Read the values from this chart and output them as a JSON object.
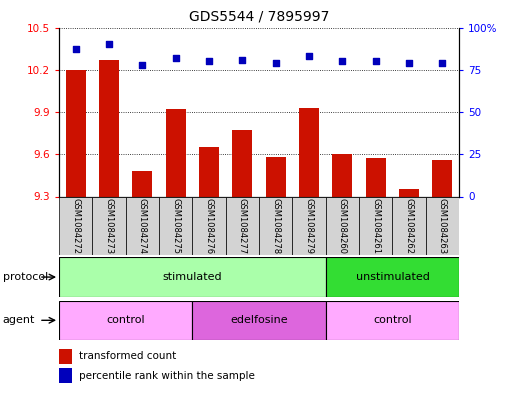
{
  "title": "GDS5544 / 7895997",
  "samples": [
    "GSM1084272",
    "GSM1084273",
    "GSM1084274",
    "GSM1084275",
    "GSM1084276",
    "GSM1084277",
    "GSM1084278",
    "GSM1084279",
    "GSM1084260",
    "GSM1084261",
    "GSM1084262",
    "GSM1084263"
  ],
  "transformed_count": [
    10.2,
    10.27,
    9.48,
    9.92,
    9.65,
    9.77,
    9.58,
    9.93,
    9.6,
    9.57,
    9.35,
    9.56
  ],
  "percentile_rank": [
    87,
    90,
    78,
    82,
    80,
    81,
    79,
    83,
    80,
    80,
    79,
    79
  ],
  "ylim_left": [
    9.3,
    10.5
  ],
  "ylim_right": [
    0,
    100
  ],
  "yticks_left": [
    9.3,
    9.6,
    9.9,
    10.2,
    10.5
  ],
  "yticks_right": [
    0,
    25,
    50,
    75,
    100
  ],
  "ytick_labels_left": [
    "9.3",
    "9.6",
    "9.9",
    "10.2",
    "10.5"
  ],
  "ytick_labels_right": [
    "0",
    "25",
    "50",
    "75",
    "100%"
  ],
  "bar_color": "#cc1100",
  "dot_color": "#0000bb",
  "protocol_groups": [
    {
      "label": "stimulated",
      "start": 0,
      "end": 8,
      "color": "#aaffaa"
    },
    {
      "label": "unstimulated",
      "start": 8,
      "end": 12,
      "color": "#33dd33"
    }
  ],
  "agent_groups": [
    {
      "label": "control",
      "start": 0,
      "end": 4,
      "color": "#ffaaff"
    },
    {
      "label": "edelfosine",
      "start": 4,
      "end": 8,
      "color": "#dd66dd"
    },
    {
      "label": "control",
      "start": 8,
      "end": 12,
      "color": "#ffaaff"
    }
  ],
  "legend_bar_label": "transformed count",
  "legend_dot_label": "percentile rank within the sample",
  "protocol_label": "protocol",
  "agent_label": "agent",
  "background_color": "#ffffff",
  "title_fontsize": 10,
  "tick_fontsize": 7.5,
  "label_fontsize": 8,
  "sample_fontsize": 6
}
